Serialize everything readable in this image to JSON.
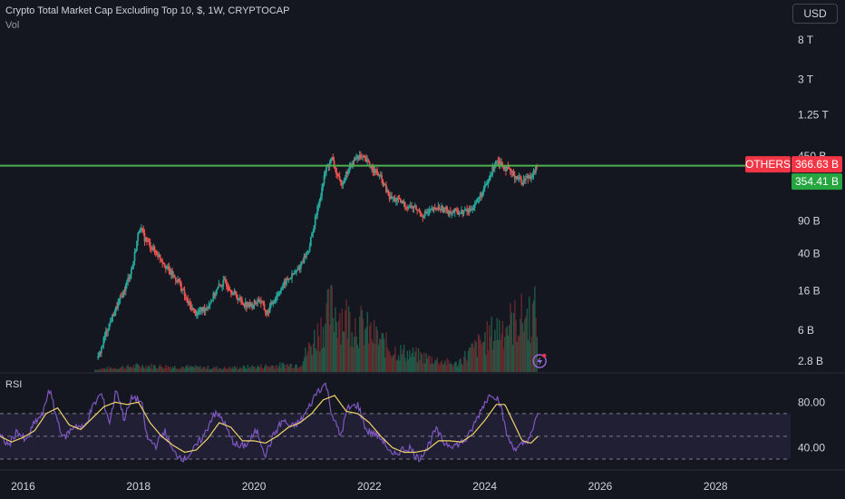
{
  "header": {
    "title": "Crypto Total Market Cap Excluding Top 10, $, 1W, CRYPTOCAP",
    "volume_label": "Vol"
  },
  "currency_button": "USD",
  "symbol_tag": "OTHERS",
  "last_price": "366.63 B",
  "horizontal_line_price": "354.41 B",
  "rsi_pane": {
    "label": "RSI"
  },
  "colors": {
    "up": "#26a69a",
    "down": "#ef5350",
    "level_line": "#4caf50",
    "rsi": "#7e57c2",
    "rsi_ma": "#f0d36b",
    "background": "#141720"
  },
  "chart_data": {
    "type": "candlestick",
    "title": "Crypto Total Market Cap Excluding Top 10, $, 1W, CRYPTOCAP",
    "y_scale": "log",
    "y_ticks": [
      "8 T",
      "3 T",
      "1.25 T",
      "450 B",
      "90 B",
      "40 B",
      "16 B",
      "6 B",
      "2.8 B"
    ],
    "y_tick_values_billion": [
      8000,
      3000,
      1250,
      450,
      90,
      40,
      16,
      6,
      2.8
    ],
    "x_ticks": [
      "2016",
      "2018",
      "2020",
      "2022",
      "2024",
      "2026",
      "2028"
    ],
    "x_tick_years": [
      2016,
      2018,
      2020,
      2022,
      2024,
      2026,
      2028
    ],
    "x_range_years": [
      2015.6,
      2029.3
    ],
    "series_close_billion": [
      [
        2017.3,
        3.0
      ],
      [
        2017.45,
        6.0
      ],
      [
        2017.6,
        10.0
      ],
      [
        2017.75,
        16.0
      ],
      [
        2017.9,
        30.0
      ],
      [
        2018.02,
        80.0
      ],
      [
        2018.1,
        60.0
      ],
      [
        2018.25,
        45.0
      ],
      [
        2018.4,
        35.0
      ],
      [
        2018.55,
        25.0
      ],
      [
        2018.7,
        20.0
      ],
      [
        2018.85,
        12.0
      ],
      [
        2019.0,
        9.0
      ],
      [
        2019.2,
        11.0
      ],
      [
        2019.4,
        18.0
      ],
      [
        2019.5,
        20.0
      ],
      [
        2019.65,
        15.0
      ],
      [
        2019.8,
        12.0
      ],
      [
        2019.95,
        11.0
      ],
      [
        2020.1,
        13.0
      ],
      [
        2020.22,
        9.0
      ],
      [
        2020.35,
        13.0
      ],
      [
        2020.55,
        20.0
      ],
      [
        2020.75,
        26.0
      ],
      [
        2020.95,
        45.0
      ],
      [
        2021.1,
        120.0
      ],
      [
        2021.25,
        330.0
      ],
      [
        2021.35,
        420.0
      ],
      [
        2021.5,
        220.0
      ],
      [
        2021.65,
        330.0
      ],
      [
        2021.8,
        460.0
      ],
      [
        2021.92,
        410.0
      ],
      [
        2022.05,
        340.0
      ],
      [
        2022.2,
        260.0
      ],
      [
        2022.35,
        160.0
      ],
      [
        2022.5,
        150.0
      ],
      [
        2022.65,
        130.0
      ],
      [
        2022.8,
        125.0
      ],
      [
        2022.9,
        105.0
      ],
      [
        2023.0,
        110.0
      ],
      [
        2023.2,
        125.0
      ],
      [
        2023.4,
        115.0
      ],
      [
        2023.6,
        112.0
      ],
      [
        2023.75,
        118.0
      ],
      [
        2023.9,
        160.0
      ],
      [
        2024.05,
        230.0
      ],
      [
        2024.2,
        420.0
      ],
      [
        2024.4,
        320.0
      ],
      [
        2024.55,
        270.0
      ],
      [
        2024.65,
        240.0
      ],
      [
        2024.75,
        270.0
      ],
      [
        2024.85,
        300.0
      ],
      [
        2024.92,
        366.63
      ]
    ],
    "horizontal_level_billion": 354.41,
    "volume_peaks_year": [
      [
        2017.0,
        0.02
      ],
      [
        2018.05,
        0.1
      ],
      [
        2019.5,
        0.06
      ],
      [
        2020.8,
        0.12
      ],
      [
        2021.35,
        1.0
      ],
      [
        2021.9,
        0.7
      ],
      [
        2022.4,
        0.35
      ],
      [
        2023.5,
        0.12
      ],
      [
        2024.25,
        0.7
      ],
      [
        2024.92,
        0.95
      ]
    ],
    "rsi": {
      "ticks": [
        "80.00",
        "40.00"
      ],
      "tick_values": [
        80,
        40
      ],
      "y_range": [
        22,
        105
      ],
      "band": [
        70,
        30
      ],
      "mid": 50,
      "series": [
        [
          2015.6,
          50
        ],
        [
          2015.75,
          42
        ],
        [
          2015.9,
          55
        ],
        [
          2016.05,
          45
        ],
        [
          2016.2,
          62
        ],
        [
          2016.35,
          70
        ],
        [
          2016.45,
          93
        ],
        [
          2016.55,
          72
        ],
        [
          2016.7,
          48
        ],
        [
          2016.9,
          60
        ],
        [
          2017.05,
          57
        ],
        [
          2017.2,
          75
        ],
        [
          2017.35,
          88
        ],
        [
          2017.5,
          62
        ],
        [
          2017.62,
          92
        ],
        [
          2017.75,
          65
        ],
        [
          2017.9,
          85
        ],
        [
          2018.05,
          80
        ],
        [
          2018.15,
          48
        ],
        [
          2018.3,
          42
        ],
        [
          2018.45,
          55
        ],
        [
          2018.6,
          36
        ],
        [
          2018.8,
          30
        ],
        [
          2018.95,
          38
        ],
        [
          2019.15,
          52
        ],
        [
          2019.3,
          70
        ],
        [
          2019.45,
          66
        ],
        [
          2019.6,
          48
        ],
        [
          2019.75,
          40
        ],
        [
          2019.9,
          44
        ],
        [
          2020.05,
          55
        ],
        [
          2020.2,
          34
        ],
        [
          2020.35,
          52
        ],
        [
          2020.5,
          64
        ],
        [
          2020.65,
          58
        ],
        [
          2020.8,
          63
        ],
        [
          2020.95,
          75
        ],
        [
          2021.1,
          90
        ],
        [
          2021.25,
          96
        ],
        [
          2021.35,
          70
        ],
        [
          2021.5,
          50
        ],
        [
          2021.62,
          74
        ],
        [
          2021.8,
          78
        ],
        [
          2021.95,
          55
        ],
        [
          2022.1,
          52
        ],
        [
          2022.25,
          46
        ],
        [
          2022.4,
          32
        ],
        [
          2022.55,
          38
        ],
        [
          2022.7,
          40
        ],
        [
          2022.85,
          30
        ],
        [
          2023.0,
          40
        ],
        [
          2023.15,
          56
        ],
        [
          2023.3,
          44
        ],
        [
          2023.5,
          42
        ],
        [
          2023.7,
          48
        ],
        [
          2023.85,
          64
        ],
        [
          2024.0,
          80
        ],
        [
          2024.12,
          88
        ],
        [
          2024.25,
          82
        ],
        [
          2024.4,
          48
        ],
        [
          2024.55,
          38
        ],
        [
          2024.7,
          45
        ],
        [
          2024.82,
          52
        ],
        [
          2024.92,
          72
        ]
      ],
      "ma_series": [
        [
          2015.6,
          50
        ],
        [
          2015.8,
          45
        ],
        [
          2016.0,
          49
        ],
        [
          2016.2,
          55
        ],
        [
          2016.4,
          70
        ],
        [
          2016.6,
          75
        ],
        [
          2016.8,
          60
        ],
        [
          2017.0,
          56
        ],
        [
          2017.2,
          66
        ],
        [
          2017.4,
          76
        ],
        [
          2017.6,
          80
        ],
        [
          2017.8,
          78
        ],
        [
          2018.0,
          80
        ],
        [
          2018.2,
          62
        ],
        [
          2018.4,
          50
        ],
        [
          2018.6,
          42
        ],
        [
          2018.8,
          36
        ],
        [
          2019.0,
          38
        ],
        [
          2019.2,
          48
        ],
        [
          2019.4,
          62
        ],
        [
          2019.6,
          58
        ],
        [
          2019.8,
          46
        ],
        [
          2020.0,
          46
        ],
        [
          2020.2,
          44
        ],
        [
          2020.4,
          50
        ],
        [
          2020.6,
          58
        ],
        [
          2020.8,
          62
        ],
        [
          2021.0,
          70
        ],
        [
          2021.2,
          82
        ],
        [
          2021.4,
          86
        ],
        [
          2021.6,
          72
        ],
        [
          2021.8,
          70
        ],
        [
          2022.0,
          62
        ],
        [
          2022.2,
          50
        ],
        [
          2022.4,
          40
        ],
        [
          2022.6,
          36
        ],
        [
          2022.8,
          36
        ],
        [
          2023.0,
          38
        ],
        [
          2023.2,
          46
        ],
        [
          2023.4,
          46
        ],
        [
          2023.6,
          45
        ],
        [
          2023.8,
          52
        ],
        [
          2024.0,
          64
        ],
        [
          2024.2,
          78
        ],
        [
          2024.35,
          78
        ],
        [
          2024.5,
          62
        ],
        [
          2024.65,
          46
        ],
        [
          2024.8,
          44
        ],
        [
          2024.92,
          50
        ]
      ]
    }
  }
}
